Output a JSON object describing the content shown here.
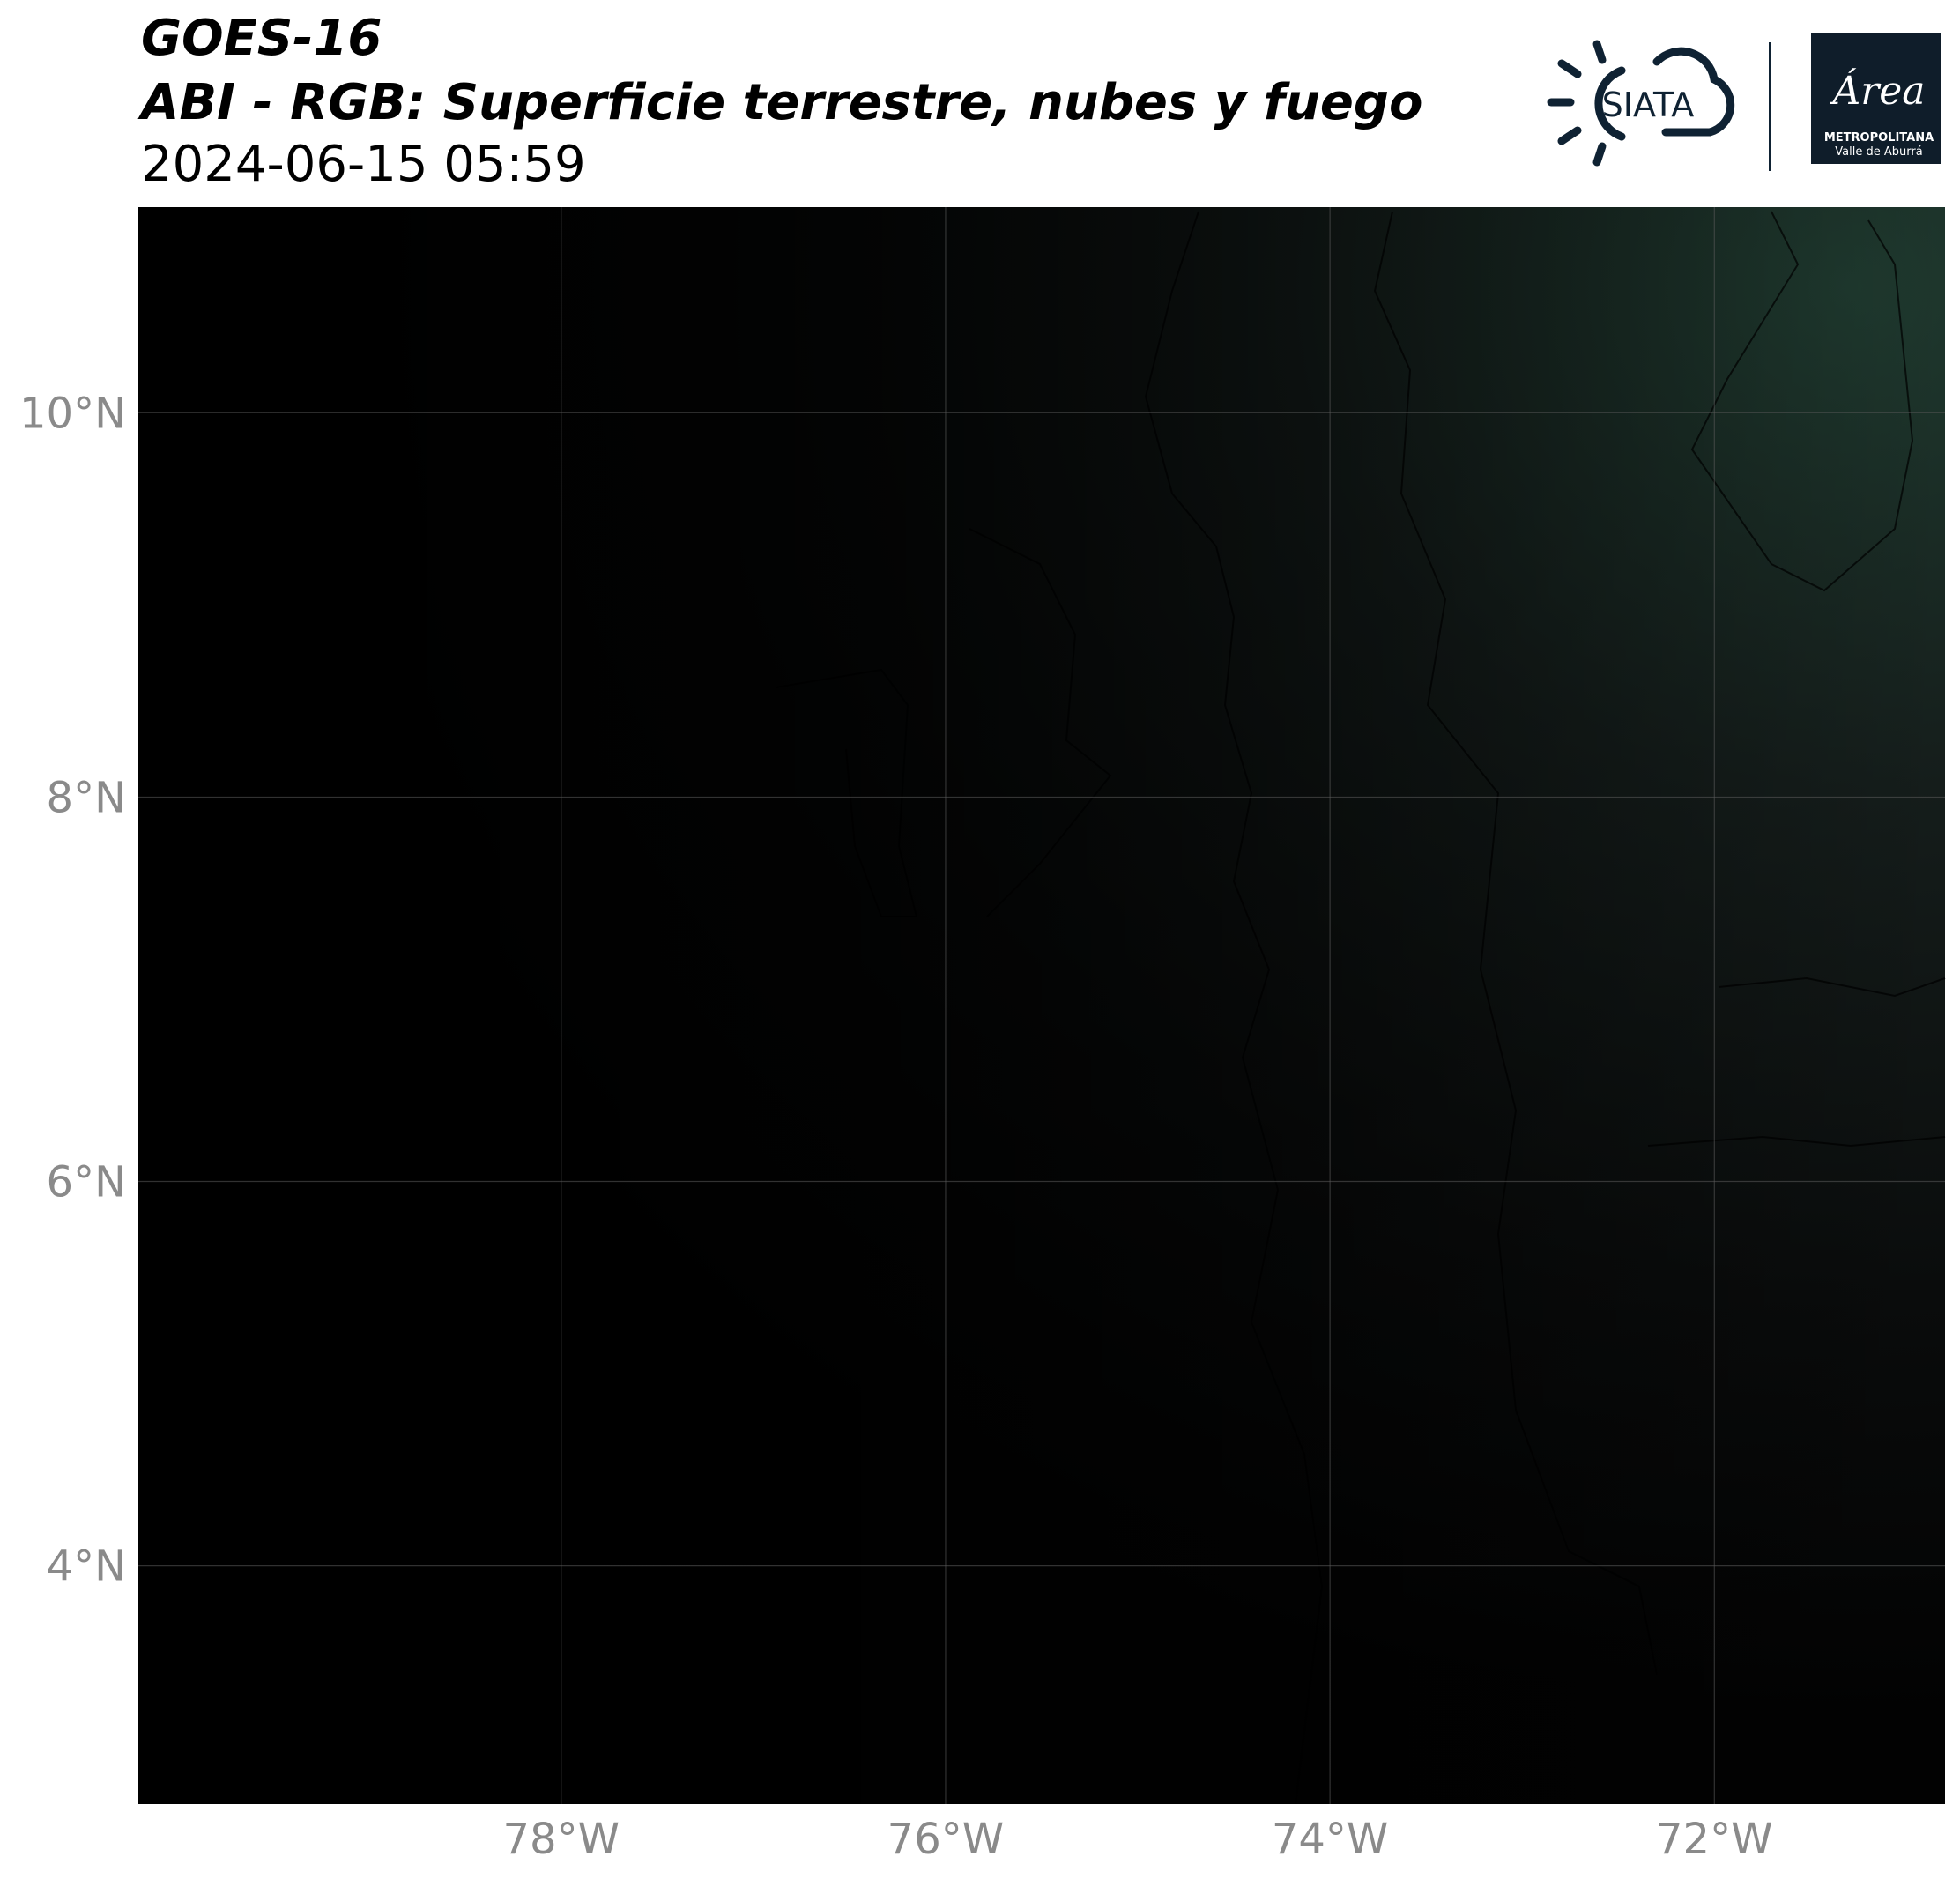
{
  "header": {
    "title": "GOES-16",
    "subtitle": "ABI - RGB: Superficie terrestre, nubes y fuego",
    "date": "2024-06-15 05:59"
  },
  "logos": {
    "siata": "SIATA",
    "area": "Área",
    "area_line1": "METROPOLITANA",
    "area_line2": "Valle de Aburrá"
  },
  "map": {
    "xlim": [
      -80.2,
      -70.8
    ],
    "ylim": [
      2.76,
      11.07
    ],
    "xticks": [
      {
        "value": -78,
        "label": "78°W"
      },
      {
        "value": -76,
        "label": "76°W"
      },
      {
        "value": -74,
        "label": "74°W"
      },
      {
        "value": -72,
        "label": "72°W"
      }
    ],
    "yticks": [
      {
        "value": 4,
        "label": "4°N"
      },
      {
        "value": 6,
        "label": "6°N"
      },
      {
        "value": 8,
        "label": "8°N"
      },
      {
        "value": 10,
        "label": "10°N"
      }
    ],
    "grid": true
  }
}
